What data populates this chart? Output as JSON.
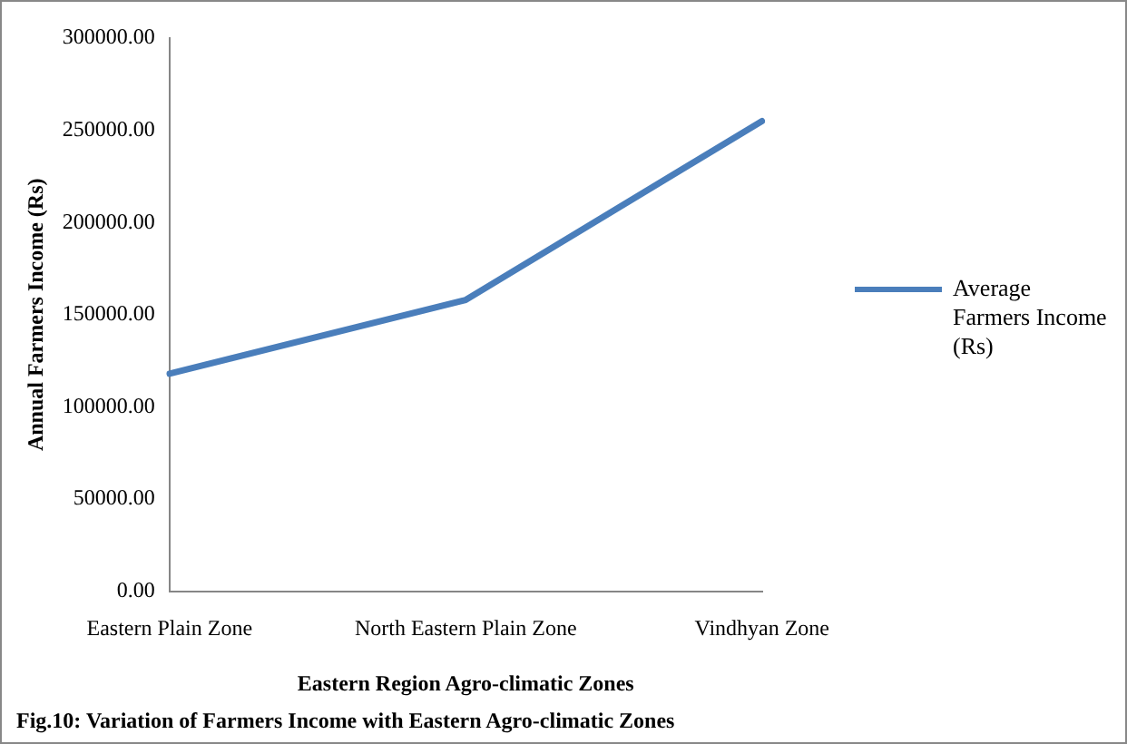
{
  "chart_data": {
    "type": "line",
    "title": "Fig.10: Variation of Farmers Income with Eastern Agro-climatic Zones",
    "xlabel": "Eastern Region Agro-climatic Zones",
    "ylabel": "Annual Farmers Income (Rs)",
    "categories": [
      "Eastern Plain Zone",
      "North Eastern Plain Zone",
      "Vindhyan Zone"
    ],
    "series": [
      {
        "name": "Average Farmers Income (Rs)",
        "color": "#4a7ebb",
        "values": [
          118000,
          158000,
          255000
        ]
      }
    ],
    "ylim": [
      0,
      300000
    ],
    "yticks": [
      {
        "value": 0,
        "label": "0.00"
      },
      {
        "value": 50000,
        "label": "50000.00"
      },
      {
        "value": 100000,
        "label": "100000.00"
      },
      {
        "value": 150000,
        "label": "150000.00"
      },
      {
        "value": 200000,
        "label": "200000.00"
      },
      {
        "value": 250000,
        "label": "250000.00"
      },
      {
        "value": 300000,
        "label": "300000.00"
      }
    ],
    "grid": false,
    "legend": "right",
    "marker": "none",
    "line_style": "solid"
  }
}
